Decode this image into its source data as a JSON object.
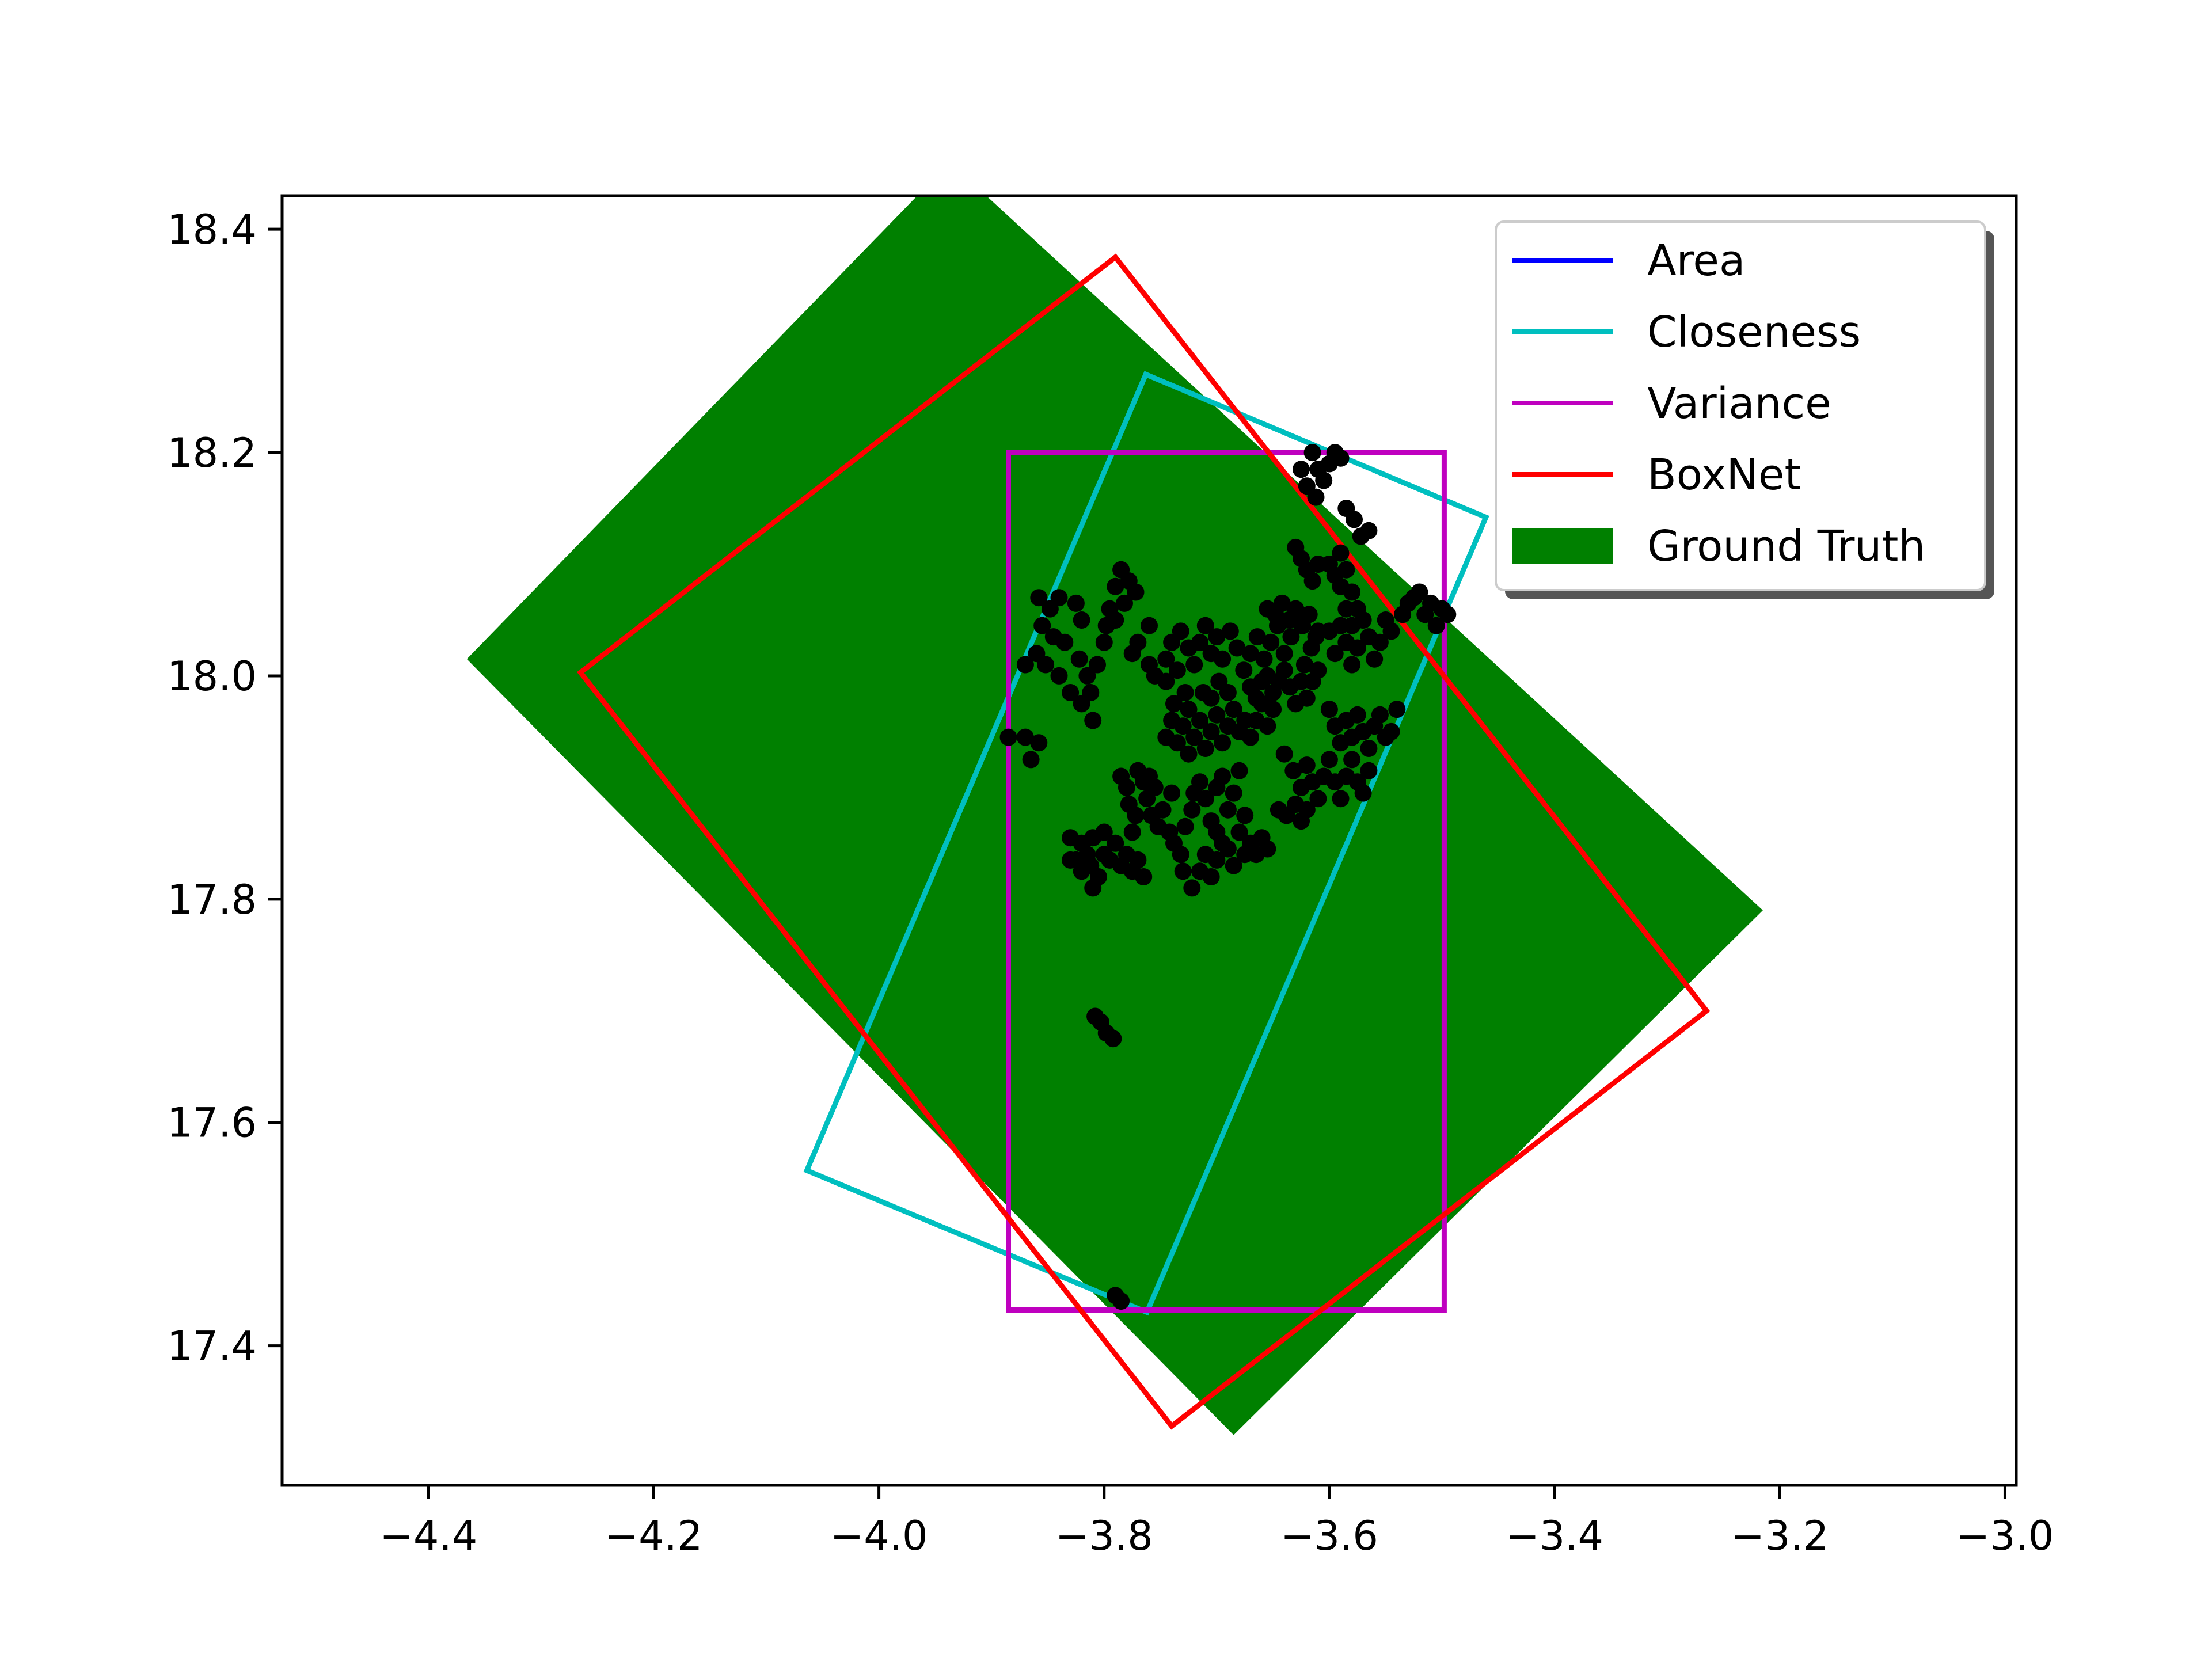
{
  "chart_data": {
    "type": "scatter",
    "title": "",
    "xlabel": "",
    "ylabel": "",
    "xlim": [
      -4.53,
      -2.99
    ],
    "ylim": [
      17.275,
      18.43
    ],
    "grid": false,
    "legend_position": "top-right",
    "x_ticks": [
      "−4.4",
      "−4.2",
      "−4.0",
      "−3.8",
      "−3.6",
      "−3.4",
      "−3.2",
      "−3.0"
    ],
    "x_tick_values": [
      -4.4,
      -4.2,
      -4.0,
      -3.8,
      -3.6,
      -3.4,
      -3.2,
      -3.0
    ],
    "y_ticks": [
      "17.4",
      "17.6",
      "17.8",
      "18.0",
      "18.2",
      "18.4"
    ],
    "y_tick_values": [
      17.4,
      17.6,
      17.8,
      18.0,
      18.2,
      18.4
    ],
    "legend": [
      {
        "label": "Area",
        "color": "#0000ff",
        "kind": "line"
      },
      {
        "label": "Closeness",
        "color": "#00bfbf",
        "kind": "line"
      },
      {
        "label": "Variance",
        "color": "#bf00bf",
        "kind": "line"
      },
      {
        "label": "BoxNet",
        "color": "#ff0000",
        "kind": "line"
      },
      {
        "label": "Ground Truth",
        "color": "#008000",
        "kind": "patch"
      }
    ],
    "boxes": [
      {
        "label": "Ground Truth",
        "color": "#008000",
        "filled": true,
        "corners": [
          [
            -4.366,
            18.015
          ],
          [
            -3.937,
            18.46
          ],
          [
            -3.215,
            17.79
          ],
          [
            -3.685,
            17.32
          ]
        ]
      },
      {
        "label": "Closeness",
        "color": "#00bfbf",
        "filled": false,
        "corners": [
          [
            -4.064,
            17.557
          ],
          [
            -3.763,
            18.27
          ],
          [
            -3.461,
            18.142
          ],
          [
            -3.762,
            17.43
          ]
        ]
      },
      {
        "label": "Variance",
        "color": "#bf00bf",
        "filled": false,
        "corners": [
          [
            -3.885,
            17.432
          ],
          [
            -3.885,
            18.2
          ],
          [
            -3.498,
            18.2
          ],
          [
            -3.498,
            17.432
          ]
        ]
      },
      {
        "label": "BoxNet",
        "color": "#ff0000",
        "filled": false,
        "corners": [
          [
            -4.265,
            18.003
          ],
          [
            -3.79,
            18.375
          ],
          [
            -3.265,
            17.7
          ],
          [
            -3.74,
            17.328
          ]
        ]
      }
    ],
    "points_color": "#000000",
    "points": [
      [
        -3.79,
        17.445
      ],
      [
        -3.785,
        17.44
      ],
      [
        -3.808,
        17.695
      ],
      [
        -3.803,
        17.69
      ],
      [
        -3.798,
        17.68
      ],
      [
        -3.792,
        17.675
      ],
      [
        -3.885,
        17.945
      ],
      [
        -3.87,
        17.945
      ],
      [
        -3.858,
        17.94
      ],
      [
        -3.865,
        17.925
      ],
      [
        -3.87,
        18.01
      ],
      [
        -3.86,
        18.02
      ],
      [
        -3.855,
        18.045
      ],
      [
        -3.848,
        18.06
      ],
      [
        -3.858,
        18.07
      ],
      [
        -3.845,
        18.035
      ],
      [
        -3.852,
        18.01
      ],
      [
        -3.84,
        18.07
      ],
      [
        -3.835,
        18.03
      ],
      [
        -3.84,
        18.0
      ],
      [
        -3.83,
        17.985
      ],
      [
        -3.822,
        18.015
      ],
      [
        -3.815,
        18.0
      ],
      [
        -3.812,
        17.985
      ],
      [
        -3.82,
        17.975
      ],
      [
        -3.81,
        17.96
      ],
      [
        -3.806,
        18.01
      ],
      [
        -3.825,
        18.065
      ],
      [
        -3.82,
        18.05
      ],
      [
        -3.795,
        18.06
      ],
      [
        -3.79,
        18.08
      ],
      [
        -3.785,
        18.095
      ],
      [
        -3.778,
        18.085
      ],
      [
        -3.772,
        18.075
      ],
      [
        -3.782,
        18.065
      ],
      [
        -3.79,
        18.05
      ],
      [
        -3.798,
        18.045
      ],
      [
        -3.8,
        18.03
      ],
      [
        -3.77,
        18.03
      ],
      [
        -3.775,
        18.02
      ],
      [
        -3.76,
        18.045
      ],
      [
        -3.83,
        17.855
      ],
      [
        -3.825,
        17.835
      ],
      [
        -3.82,
        17.85
      ],
      [
        -3.815,
        17.84
      ],
      [
        -3.812,
        17.83
      ],
      [
        -3.81,
        17.81
      ],
      [
        -3.805,
        17.82
      ],
      [
        -3.8,
        17.84
      ],
      [
        -3.795,
        17.835
      ],
      [
        -3.79,
        17.85
      ],
      [
        -3.785,
        17.83
      ],
      [
        -3.78,
        17.84
      ],
      [
        -3.775,
        17.825
      ],
      [
        -3.77,
        17.835
      ],
      [
        -3.765,
        17.82
      ],
      [
        -3.81,
        17.855
      ],
      [
        -3.8,
        17.86
      ],
      [
        -3.82,
        17.825
      ],
      [
        -3.83,
        17.835
      ],
      [
        -3.785,
        17.91
      ],
      [
        -3.78,
        17.9
      ],
      [
        -3.778,
        17.885
      ],
      [
        -3.772,
        17.875
      ],
      [
        -3.765,
        17.905
      ],
      [
        -3.762,
        17.89
      ],
      [
        -3.758,
        17.875
      ],
      [
        -3.752,
        17.865
      ],
      [
        -3.748,
        17.88
      ],
      [
        -3.742,
        17.86
      ],
      [
        -3.738,
        17.85
      ],
      [
        -3.732,
        17.84
      ],
      [
        -3.728,
        17.865
      ],
      [
        -3.722,
        17.88
      ],
      [
        -3.74,
        17.895
      ],
      [
        -3.755,
        17.9
      ],
      [
        -3.77,
        17.915
      ],
      [
        -3.76,
        17.91
      ],
      [
        -3.775,
        17.86
      ],
      [
        -3.73,
        17.825
      ],
      [
        -3.722,
        17.81
      ],
      [
        -3.715,
        17.825
      ],
      [
        -3.71,
        17.84
      ],
      [
        -3.705,
        17.82
      ],
      [
        -3.7,
        17.835
      ],
      [
        -3.695,
        17.85
      ],
      [
        -3.69,
        17.845
      ],
      [
        -3.685,
        17.83
      ],
      [
        -3.68,
        17.86
      ],
      [
        -3.675,
        17.84
      ],
      [
        -3.67,
        17.85
      ],
      [
        -3.665,
        17.84
      ],
      [
        -3.66,
        17.855
      ],
      [
        -3.655,
        17.845
      ],
      [
        -3.7,
        17.86
      ],
      [
        -3.705,
        17.87
      ],
      [
        -3.69,
        17.88
      ],
      [
        -3.675,
        17.875
      ],
      [
        -3.71,
        17.89
      ],
      [
        -3.715,
        17.905
      ],
      [
        -3.72,
        17.895
      ],
      [
        -3.7,
        17.9
      ],
      [
        -3.695,
        17.91
      ],
      [
        -3.685,
        17.895
      ],
      [
        -3.68,
        17.915
      ],
      [
        -3.745,
        17.945
      ],
      [
        -3.74,
        17.96
      ],
      [
        -3.735,
        17.94
      ],
      [
        -3.73,
        17.955
      ],
      [
        -3.725,
        17.93
      ],
      [
        -3.72,
        17.945
      ],
      [
        -3.715,
        17.96
      ],
      [
        -3.71,
        17.935
      ],
      [
        -3.705,
        17.95
      ],
      [
        -3.7,
        17.965
      ],
      [
        -3.695,
        17.94
      ],
      [
        -3.69,
        17.955
      ],
      [
        -3.685,
        17.97
      ],
      [
        -3.68,
        17.95
      ],
      [
        -3.675,
        17.96
      ],
      [
        -3.67,
        17.945
      ],
      [
        -3.665,
        17.96
      ],
      [
        -3.66,
        17.975
      ],
      [
        -3.655,
        17.955
      ],
      [
        -3.65,
        17.97
      ],
      [
        -3.738,
        17.975
      ],
      [
        -3.728,
        17.985
      ],
      [
        -3.745,
        17.995
      ],
      [
        -3.735,
        18.005
      ],
      [
        -3.725,
        17.97
      ],
      [
        -3.712,
        17.985
      ],
      [
        -3.705,
        17.98
      ],
      [
        -3.698,
        17.995
      ],
      [
        -3.69,
        17.985
      ],
      [
        -3.76,
        18.01
      ],
      [
        -3.755,
        18.0
      ],
      [
        -3.745,
        18.015
      ],
      [
        -3.74,
        18.03
      ],
      [
        -3.732,
        18.04
      ],
      [
        -3.725,
        18.025
      ],
      [
        -3.72,
        18.01
      ],
      [
        -3.715,
        18.03
      ],
      [
        -3.71,
        18.045
      ],
      [
        -3.705,
        18.02
      ],
      [
        -3.7,
        18.035
      ],
      [
        -3.695,
        18.015
      ],
      [
        -3.688,
        18.04
      ],
      [
        -3.682,
        18.025
      ],
      [
        -3.676,
        18.005
      ],
      [
        -3.67,
        18.02
      ],
      [
        -3.664,
        18.035
      ],
      [
        -3.658,
        18.015
      ],
      [
        -3.652,
        18.03
      ],
      [
        -3.646,
        18.045
      ],
      [
        -3.64,
        18.02
      ],
      [
        -3.634,
        18.035
      ],
      [
        -3.628,
        18.05
      ],
      [
        -3.622,
        18.01
      ],
      [
        -3.616,
        18.025
      ],
      [
        -3.61,
        18.04
      ],
      [
        -3.67,
        17.99
      ],
      [
        -3.665,
        17.98
      ],
      [
        -3.66,
        17.995
      ],
      [
        -3.655,
        18.0
      ],
      [
        -3.65,
        17.985
      ],
      [
        -3.645,
        17.995
      ],
      [
        -3.64,
        18.005
      ],
      [
        -3.635,
        17.99
      ],
      [
        -3.63,
        17.975
      ],
      [
        -3.625,
        17.995
      ],
      [
        -3.62,
        17.98
      ],
      [
        -3.615,
        17.995
      ],
      [
        -3.61,
        18.005
      ],
      [
        -3.655,
        18.06
      ],
      [
        -3.648,
        18.055
      ],
      [
        -3.642,
        18.065
      ],
      [
        -3.636,
        18.05
      ],
      [
        -3.63,
        18.06
      ],
      [
        -3.624,
        18.045
      ],
      [
        -3.618,
        18.055
      ],
      [
        -3.612,
        18.035
      ],
      [
        -3.6,
        18.04
      ],
      [
        -3.595,
        18.02
      ],
      [
        -3.59,
        18.045
      ],
      [
        -3.585,
        18.03
      ],
      [
        -3.58,
        18.01
      ],
      [
        -3.575,
        18.025
      ],
      [
        -3.57,
        18.05
      ],
      [
        -3.565,
        18.035
      ],
      [
        -3.56,
        18.015
      ],
      [
        -3.555,
        18.03
      ],
      [
        -3.55,
        18.05
      ],
      [
        -3.545,
        18.04
      ],
      [
        -3.535,
        18.055
      ],
      [
        -3.53,
        18.065
      ],
      [
        -3.525,
        18.07
      ],
      [
        -3.52,
        18.075
      ],
      [
        -3.515,
        18.055
      ],
      [
        -3.51,
        18.065
      ],
      [
        -3.505,
        18.045
      ],
      [
        -3.5,
        18.06
      ],
      [
        -3.495,
        18.055
      ],
      [
        -3.6,
        17.97
      ],
      [
        -3.595,
        17.955
      ],
      [
        -3.59,
        17.94
      ],
      [
        -3.585,
        17.96
      ],
      [
        -3.58,
        17.945
      ],
      [
        -3.575,
        17.965
      ],
      [
        -3.57,
        17.95
      ],
      [
        -3.565,
        17.935
      ],
      [
        -3.56,
        17.955
      ],
      [
        -3.555,
        17.965
      ],
      [
        -3.55,
        17.945
      ],
      [
        -3.545,
        17.95
      ],
      [
        -3.54,
        17.97
      ],
      [
        -3.64,
        17.93
      ],
      [
        -3.632,
        17.915
      ],
      [
        -3.625,
        17.9
      ],
      [
        -3.62,
        17.92
      ],
      [
        -3.615,
        17.905
      ],
      [
        -3.61,
        17.89
      ],
      [
        -3.605,
        17.91
      ],
      [
        -3.6,
        17.925
      ],
      [
        -3.595,
        17.905
      ],
      [
        -3.59,
        17.89
      ],
      [
        -3.585,
        17.91
      ],
      [
        -3.58,
        17.925
      ],
      [
        -3.575,
        17.905
      ],
      [
        -3.57,
        17.895
      ],
      [
        -3.565,
        17.915
      ],
      [
        -3.645,
        17.88
      ],
      [
        -3.638,
        17.875
      ],
      [
        -3.63,
        17.885
      ],
      [
        -3.625,
        17.87
      ],
      [
        -3.62,
        17.88
      ],
      [
        -3.615,
        18.2
      ],
      [
        -3.61,
        18.185
      ],
      [
        -3.605,
        18.175
      ],
      [
        -3.62,
        18.17
      ],
      [
        -3.625,
        18.185
      ],
      [
        -3.6,
        18.19
      ],
      [
        -3.595,
        18.2
      ],
      [
        -3.59,
        18.195
      ],
      [
        -3.612,
        18.16
      ],
      [
        -3.585,
        18.15
      ],
      [
        -3.578,
        18.14
      ],
      [
        -3.572,
        18.125
      ],
      [
        -3.565,
        18.13
      ],
      [
        -3.6,
        18.1
      ],
      [
        -3.595,
        18.09
      ],
      [
        -3.59,
        18.08
      ],
      [
        -3.585,
        18.095
      ],
      [
        -3.58,
        18.075
      ],
      [
        -3.59,
        18.11
      ],
      [
        -3.63,
        18.115
      ],
      [
        -3.625,
        18.105
      ],
      [
        -3.62,
        18.095
      ],
      [
        -3.615,
        18.085
      ],
      [
        -3.61,
        18.1
      ],
      [
        -3.585,
        18.06
      ],
      [
        -3.58,
        18.045
      ],
      [
        -3.575,
        18.06
      ]
    ]
  }
}
